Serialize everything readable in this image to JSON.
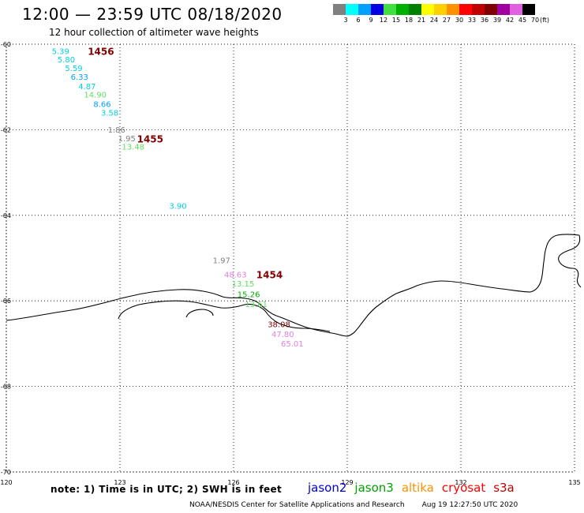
{
  "header": {
    "title": "12:00 — 23:59 UTC 08/18/2020",
    "subtitle": "12 hour collection of altimeter wave heights"
  },
  "legend": {
    "unit": "(ft)",
    "bins": [
      {
        "label": "3",
        "color": "#808080"
      },
      {
        "label": "6",
        "color": "#00ffff"
      },
      {
        "label": "9",
        "color": "#00a0ff"
      },
      {
        "label": "12",
        "color": "#0000e0"
      },
      {
        "label": "15",
        "color": "#40e040"
      },
      {
        "label": "18",
        "color": "#00b000"
      },
      {
        "label": "21",
        "color": "#008000"
      },
      {
        "label": "24",
        "color": "#ffff00"
      },
      {
        "label": "27",
        "color": "#ffd000"
      },
      {
        "label": "30",
        "color": "#ff9000"
      },
      {
        "label": "33",
        "color": "#ff0000"
      },
      {
        "label": "36",
        "color": "#c00000"
      },
      {
        "label": "39",
        "color": "#800000"
      },
      {
        "label": "42",
        "color": "#a000a0"
      },
      {
        "label": "45",
        "color": "#e060e0"
      },
      {
        "label": "70",
        "color": "#000000"
      }
    ]
  },
  "map": {
    "lon_ticks": [
      "120",
      "123",
      "126",
      "129",
      "132",
      "135"
    ],
    "lat_ticks": [
      "-60",
      "-62",
      "-64",
      "-66",
      "-68",
      "-70"
    ],
    "passes": [
      {
        "label": "1456",
        "lon": 122.15,
        "lat": -60.08,
        "color": "#800000"
      },
      {
        "label": "1455",
        "lon": 123.45,
        "lat": -62.13,
        "color": "#800000"
      },
      {
        "label": "1454",
        "lon": 126.6,
        "lat": -65.3,
        "color": "#800000"
      }
    ],
    "points": [
      {
        "text": "5.39",
        "lon": 121.2,
        "lat": -60.08,
        "color": "#00d0e0"
      },
      {
        "text": "5.80",
        "lon": 121.35,
        "lat": -60.28,
        "color": "#00d0e0"
      },
      {
        "text": "5.59",
        "lon": 121.55,
        "lat": -60.48,
        "color": "#00d0e0"
      },
      {
        "text": "6.33",
        "lon": 121.7,
        "lat": -60.68,
        "color": "#00a0ff"
      },
      {
        "text": "4.87",
        "lon": 121.9,
        "lat": -60.9,
        "color": "#00d0e0"
      },
      {
        "text": "14.90",
        "lon": 122.05,
        "lat": -61.1,
        "color": "#60e060"
      },
      {
        "text": "8.66",
        "lon": 122.3,
        "lat": -61.32,
        "color": "#00a0ff"
      },
      {
        "text": "3.58",
        "lon": 122.5,
        "lat": -61.52,
        "color": "#00d0e0"
      },
      {
        "text": "1.86",
        "lon": 122.68,
        "lat": -61.92,
        "color": "#808080"
      },
      {
        "text": "1.95",
        "lon": 122.95,
        "lat": -62.12,
        "color": "#808080"
      },
      {
        "text": "13.48",
        "lon": 123.05,
        "lat": -62.32,
        "color": "#60e060"
      },
      {
        "text": "3.90",
        "lon": 124.3,
        "lat": -63.7,
        "color": "#00d0e0"
      },
      {
        "text": "1.97",
        "lon": 125.45,
        "lat": -64.97,
        "color": "#808080"
      },
      {
        "text": "48.63",
        "lon": 125.75,
        "lat": -65.3,
        "color": "#e080e0"
      },
      {
        "text": "13.15",
        "lon": 125.95,
        "lat": -65.52,
        "color": "#60e060"
      },
      {
        "text": "15.26",
        "lon": 126.1,
        "lat": -65.77,
        "color": "#00b000"
      },
      {
        "text": "13.61",
        "lon": 126.3,
        "lat": -66.0,
        "color": "#60e060"
      },
      {
        "text": "38.08",
        "lon": 126.9,
        "lat": -66.47,
        "color": "#800000"
      },
      {
        "text": "47.80",
        "lon": 127.0,
        "lat": -66.7,
        "color": "#e080e0"
      },
      {
        "text": "65.01",
        "lon": 127.25,
        "lat": -66.92,
        "color": "#e080e0"
      }
    ]
  },
  "footer": {
    "note": "note: 1) Time is in UTC; 2) SWH is in feet",
    "satellites": [
      {
        "name": "jason2",
        "color": "#0000d0"
      },
      {
        "name": "jason3",
        "color": "#00a000"
      },
      {
        "name": "altika",
        "color": "#ff9000"
      },
      {
        "name": "cryosat",
        "color": "#ff0000"
      },
      {
        "name": "s3a",
        "color": "#c00000"
      }
    ],
    "credit": "NOAA/NESDIS Center for Satellite Applications and Research",
    "timestamp": "Aug 19 12:27:50 UTC 2020"
  }
}
